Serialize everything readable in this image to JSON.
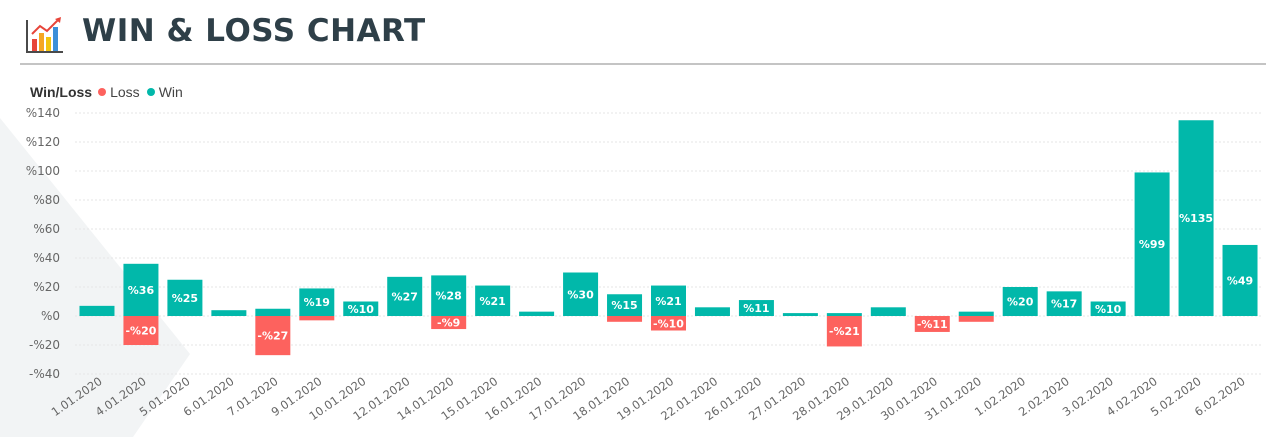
{
  "header": {
    "title": "WIN & LOSS CHART",
    "logo_icon": "bar-chart-trend-icon"
  },
  "colors": {
    "win": "#01b8aa",
    "loss": "#fd625e",
    "title": "#2e3f48",
    "grid": "#e6e6e6",
    "axis_text": "#666666"
  },
  "legend": {
    "title": "Win/Loss",
    "items": [
      {
        "label": "Loss",
        "color": "#fd625e"
      },
      {
        "label": "Win",
        "color": "#01b8aa"
      }
    ],
    "position": "top-left"
  },
  "chart_data": {
    "type": "bar",
    "stacked": true,
    "title": "WIN & LOSS CHART",
    "xlabel": "",
    "ylabel": "",
    "ylim": [
      -40,
      140
    ],
    "yticks": [
      140,
      120,
      100,
      80,
      60,
      40,
      20,
      0,
      -20,
      -40
    ],
    "ytick_labels": [
      "%140",
      "%120",
      "%100",
      "%80",
      "%60",
      "%40",
      "%20",
      "%0",
      "-%20",
      "-%40"
    ],
    "grid": true,
    "legend_position": "top-left",
    "categories": [
      "1.01.2020",
      "4.01.2020",
      "5.01.2020",
      "6.01.2020",
      "7.01.2020",
      "9.01.2020",
      "10.01.2020",
      "12.01.2020",
      "14.01.2020",
      "15.01.2020",
      "16.01.2020",
      "17.01.2020",
      "18.01.2020",
      "19.01.2020",
      "22.01.2020",
      "26.01.2020",
      "27.01.2020",
      "28.01.2020",
      "29.01.2020",
      "30.01.2020",
      "31.01.2020",
      "1.02.2020",
      "2.02.2020",
      "3.02.2020",
      "4.02.2020",
      "5.02.2020",
      "6.02.2020"
    ],
    "series": [
      {
        "name": "Loss",
        "color": "#fd625e",
        "values": [
          0,
          -20,
          0,
          0,
          -27,
          -3,
          0,
          0,
          -9,
          0,
          0,
          0,
          -4,
          -10,
          0,
          0,
          0,
          -21,
          0,
          -11,
          -4,
          0,
          0,
          0,
          0,
          0,
          0
        ],
        "labels": [
          "",
          "-%20",
          "",
          "",
          "-%27",
          "",
          "",
          "",
          "-%9",
          "",
          "",
          "",
          "",
          "-%10",
          "",
          "",
          "",
          "-%21",
          "",
          "-%11",
          "",
          "",
          "",
          "",
          "",
          "",
          ""
        ]
      },
      {
        "name": "Win",
        "color": "#01b8aa",
        "values": [
          7,
          36,
          25,
          4,
          5,
          19,
          10,
          27,
          28,
          21,
          3,
          30,
          15,
          21,
          6,
          11,
          2,
          2,
          6,
          0,
          3,
          20,
          17,
          10,
          99,
          135,
          49
        ],
        "labels": [
          "",
          "%36",
          "%25",
          "",
          "",
          "%19",
          "%10",
          "%27",
          "%28",
          "%21",
          "",
          "%30",
          "%15",
          "%21",
          "",
          "%11",
          "",
          "",
          "",
          "",
          "",
          "%20",
          "%17",
          "%10",
          "%99",
          "%135",
          "%49"
        ]
      }
    ]
  }
}
